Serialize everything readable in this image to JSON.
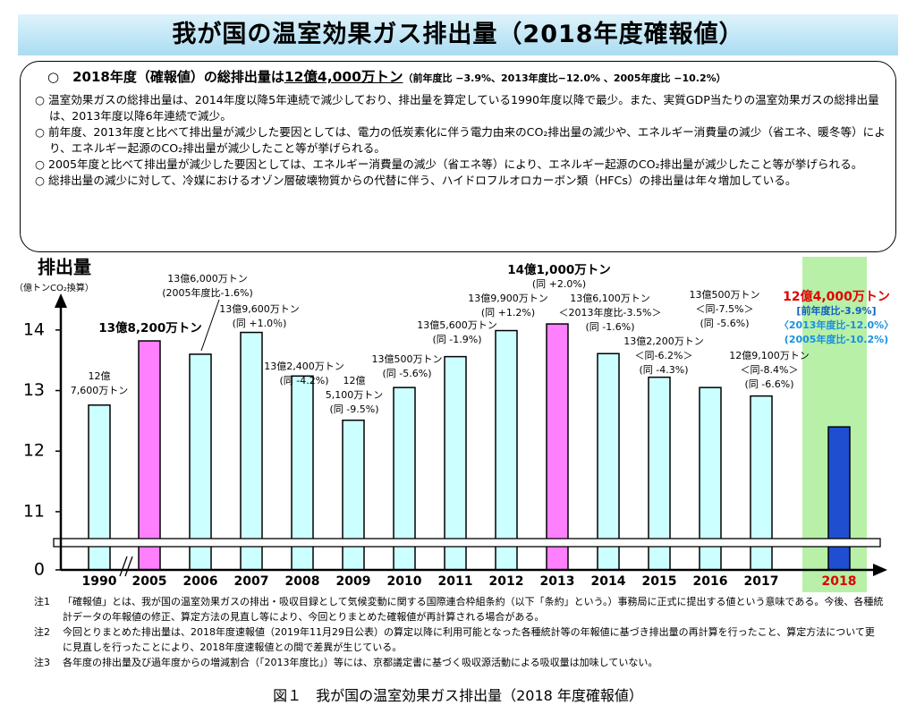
{
  "header": {
    "title": "我が国の温室効果ガス排出量（2018年度確報値）"
  },
  "summary": {
    "headline": {
      "text": "2018年度（確報値）の総排出量は",
      "amount": "12億4,000万トン",
      "note": "（前年度比 −3.9%、2013年度比−12.0% 、2005年度比 −10.2%）"
    },
    "bullets": [
      "温室効果ガスの総排出量は、2014年度以降5年連続で減少しており、排出量を算定している1990年度以降で最少。また、実質GDP当たりの温室効果ガスの総排出量は、2013年度以降6年連続で減少。",
      "前年度、2013年度と比べて排出量が減少した要因としては、電力の低炭素化に伴う電力由来のCO₂排出量の減少や、エネルギー消費量の減少（省エネ、暖冬等）により、エネルギー起源のCO₂排出量が減少したこと等が挙げられる。",
      "2005年度と比べて排出量が減少した要因としては、エネルギー消費量の減少（省エネ等）により、エネルギー起源のCO₂排出量が減少したこと等が挙げられる。",
      "総排出量の減少に対して、冷媒におけるオゾン層破壊物質からの代替に伴う、ハイドロフルオロカーボン類（HFCs）の排出量は年々増加している。"
    ]
  },
  "chart_data": {
    "type": "bar",
    "axis_title": "排出量",
    "axis_unit": "（億トンCO₂換算）",
    "categories": [
      "1990",
      "2005",
      "2006",
      "2007",
      "2008",
      "2009",
      "2010",
      "2011",
      "2012",
      "2013",
      "2014",
      "2015",
      "2016",
      "2017",
      "2018"
    ],
    "values": [
      12.76,
      13.82,
      13.6,
      13.96,
      13.24,
      12.51,
      13.05,
      13.56,
      13.99,
      14.1,
      13.61,
      13.22,
      13.05,
      12.91,
      12.4
    ],
    "colors": [
      "#ccffff",
      "#ff80ff",
      "#ccffff",
      "#ccffff",
      "#ccffff",
      "#ccffff",
      "#ccffff",
      "#ccffff",
      "#ccffff",
      "#ff80ff",
      "#ccffff",
      "#ccffff",
      "#ccffff",
      "#ccffff",
      "#1f4fd0"
    ],
    "value_labels": [
      [
        "12億",
        "7,600万トン"
      ],
      [
        "13億8,200万トン"
      ],
      [
        "13億6,000万トン",
        "(2005年度比-1.6%)"
      ],
      [
        "13億9,600万トン",
        "(同 +1.0％)"
      ],
      [
        "13億2,400万トン",
        "(同 -4.2%)"
      ],
      [
        "12億",
        "5,100万トン",
        "(同 -9.5%)"
      ],
      [
        "13億500万トン",
        "(同 -5.6%)"
      ],
      [
        "13億5,600万トン",
        "(同 -1.9%)"
      ],
      [
        "13億9,900万トン",
        "(同 +1.2%)"
      ],
      [
        "14億1,000万トン",
        "(同 +2.0%)"
      ],
      [
        "13億6,100万トン",
        "＜2013年度比-3.5%＞",
        "(同 -1.6%)"
      ],
      [
        "13億2,200万トン",
        "＜同-6.2%＞",
        "(同 -4.3%)"
      ],
      [
        "13億500万トン",
        "＜同-7.5%＞",
        "(同 -5.6%)"
      ],
      [
        "12億9,100万トン",
        "＜同-8.4%＞",
        "(同 -6.6%)"
      ],
      [
        "12億4,000万トン",
        "[前年度比-3.9%]",
        "〈2013年度比-12.0%〉",
        "(2005年度比-10.2%)"
      ]
    ],
    "ylim": [
      0,
      14.5
    ],
    "y_break": [
      0,
      10.6
    ],
    "yticks": [
      0,
      11,
      12,
      13,
      14
    ],
    "highlight_color": "#b8f0a8"
  },
  "notes": [
    {
      "label": "注1",
      "text": "「確報値」とは、我が国の温室効果ガスの排出・吸収目録として気候変動に関する国際連合枠組条約（以下「条約」という。）事務局に正式に提出する値という意味である。今後、各種統計データの年報値の修正、算定方法の見直し等により、今回とりまとめた確報値が再計算される場合がある。"
    },
    {
      "label": "注2",
      "text": "今回とりまとめた排出量は、2018年度速報値（2019年11月29日公表）の算定以降に利用可能となった各種統計等の年報値に基づき排出量の再計算を行ったこと、算定方法について更に見直しを行ったことにより、2018年度速報値との間で差異が生じている。"
    },
    {
      "label": "注3",
      "text": "各年度の排出量及び過年度からの増減割合（「2013年度比」）等には、京都議定書に基づく吸収源活動による吸収量は加味していない。"
    }
  ],
  "caption": "図１　我が国の温室効果ガス排出量（2018 年度確報値）"
}
